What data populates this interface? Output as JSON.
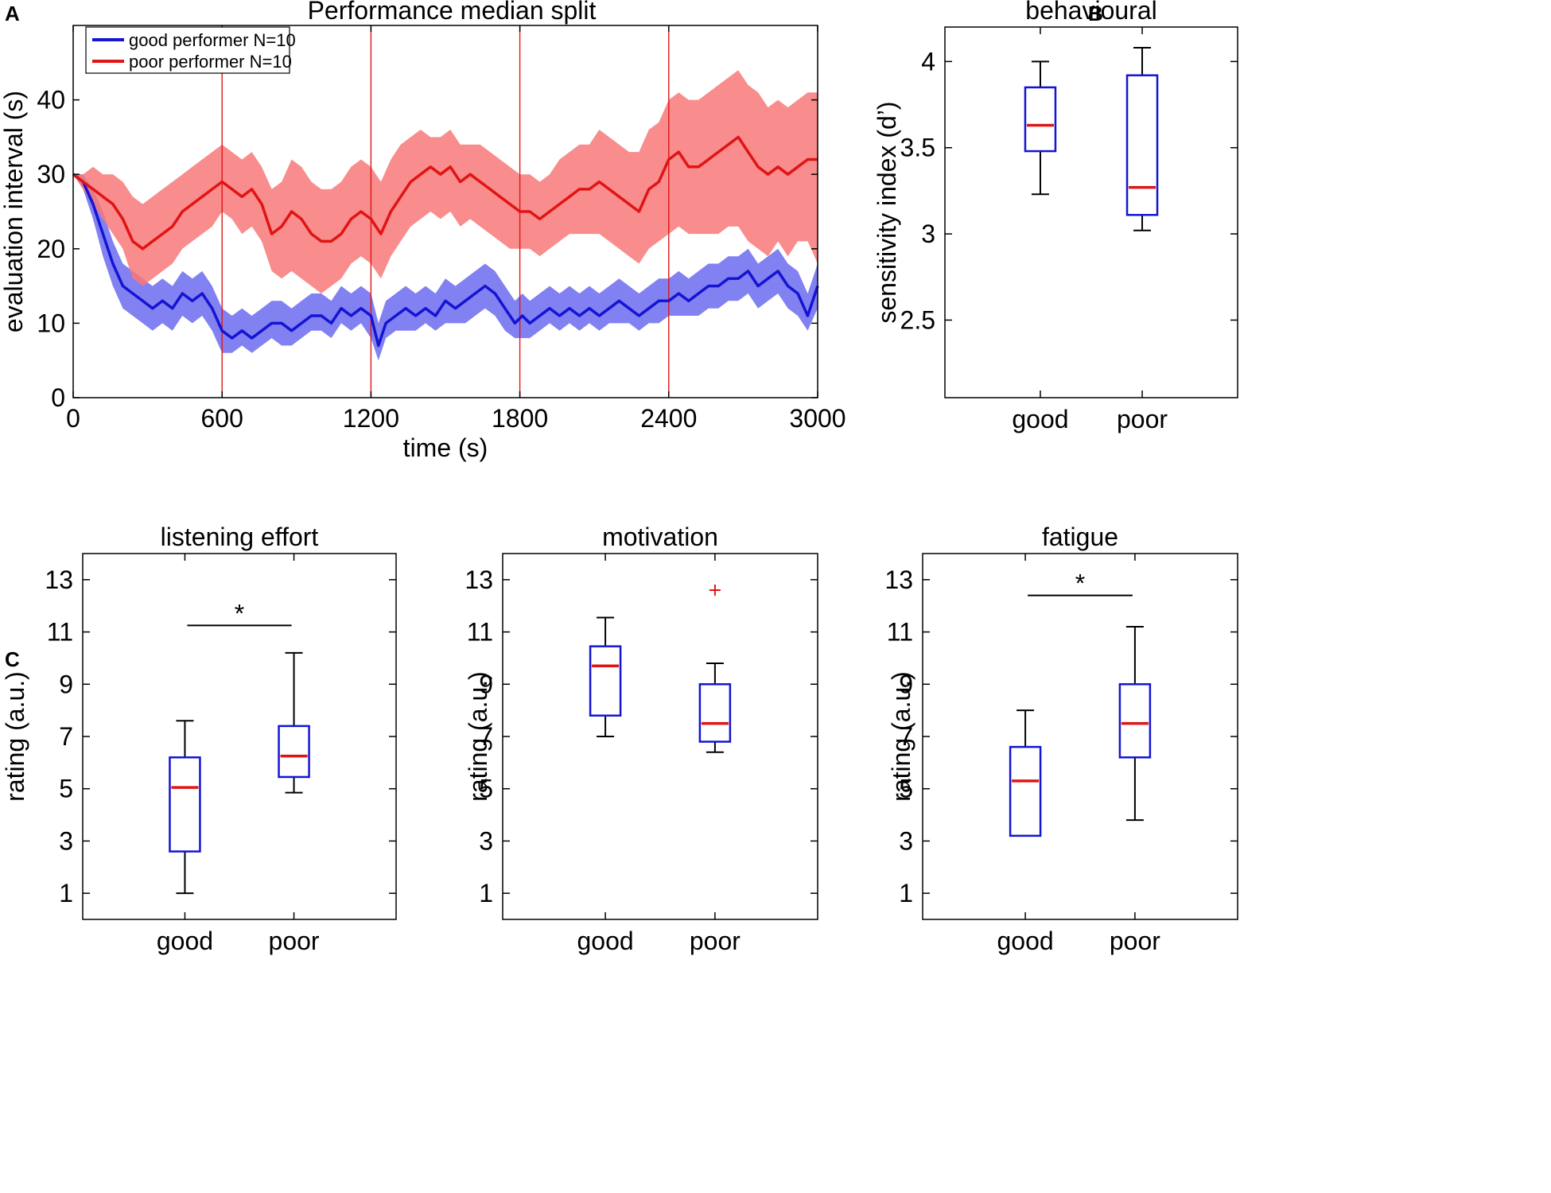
{
  "figure": {
    "panel_letters": [
      "A",
      "B",
      "C"
    ]
  },
  "chart_data": [
    {
      "id": "A",
      "type": "line",
      "title": "Performance median split",
      "xlabel": "time (s)",
      "ylabel": "evaluation interval (s)",
      "xlim": [
        0,
        3000
      ],
      "ylim": [
        0,
        50
      ],
      "xticks": [
        0,
        600,
        1200,
        1800,
        2400,
        3000
      ],
      "yticks": [
        0,
        10,
        20,
        30,
        40
      ],
      "vlines": [
        600,
        1200,
        1800,
        2400
      ],
      "legend": {
        "position": "top-left"
      },
      "series": [
        {
          "name": "good performer N=10",
          "color": "#1414d2",
          "band_color": "#6b6bf0",
          "x": [
            0,
            40,
            80,
            120,
            160,
            200,
            240,
            280,
            320,
            360,
            400,
            440,
            480,
            520,
            560,
            600,
            640,
            680,
            720,
            760,
            800,
            840,
            880,
            920,
            960,
            1000,
            1040,
            1080,
            1120,
            1160,
            1200,
            1230,
            1260,
            1300,
            1340,
            1380,
            1420,
            1460,
            1500,
            1540,
            1580,
            1620,
            1660,
            1700,
            1740,
            1780,
            1810,
            1840,
            1880,
            1920,
            1960,
            2000,
            2040,
            2080,
            2120,
            2160,
            2200,
            2240,
            2280,
            2320,
            2360,
            2400,
            2440,
            2480,
            2520,
            2560,
            2600,
            2640,
            2680,
            2720,
            2760,
            2800,
            2840,
            2880,
            2920,
            2960,
            3000
          ],
          "y": [
            30,
            29,
            26,
            22,
            18,
            15,
            14,
            13,
            12,
            13,
            12,
            14,
            13,
            14,
            12,
            9,
            8,
            9,
            8,
            9,
            10,
            10,
            9,
            10,
            11,
            11,
            10,
            12,
            11,
            12,
            11,
            7,
            10,
            11,
            12,
            11,
            12,
            11,
            13,
            12,
            13,
            14,
            15,
            14,
            12,
            10,
            11,
            10,
            11,
            12,
            11,
            12,
            11,
            12,
            11,
            12,
            13,
            12,
            11,
            12,
            13,
            13,
            14,
            13,
            14,
            15,
            15,
            16,
            16,
            17,
            15,
            16,
            17,
            15,
            14,
            11,
            15
          ],
          "lower": [
            30,
            28,
            24,
            19,
            15,
            12,
            11,
            10,
            9,
            10,
            9,
            11,
            10,
            11,
            9,
            6,
            6,
            7,
            6,
            7,
            8,
            7,
            7,
            8,
            9,
            9,
            8,
            10,
            9,
            10,
            8,
            5,
            8,
            9,
            9,
            9,
            10,
            9,
            10,
            10,
            10,
            11,
            12,
            11,
            9,
            8,
            8,
            8,
            9,
            10,
            9,
            10,
            9,
            10,
            9,
            10,
            10,
            10,
            9,
            10,
            10,
            11,
            11,
            11,
            11,
            12,
            12,
            13,
            13,
            14,
            12,
            13,
            14,
            12,
            11,
            9,
            12
          ],
          "upper": [
            30,
            30,
            28,
            25,
            21,
            18,
            17,
            16,
            15,
            16,
            15,
            17,
            16,
            17,
            15,
            12,
            11,
            12,
            11,
            12,
            13,
            13,
            12,
            13,
            14,
            14,
            13,
            15,
            14,
            15,
            14,
            10,
            13,
            14,
            15,
            14,
            15,
            14,
            16,
            15,
            16,
            17,
            18,
            17,
            15,
            13,
            14,
            13,
            14,
            15,
            14,
            15,
            14,
            15,
            14,
            15,
            16,
            15,
            14,
            15,
            16,
            16,
            17,
            16,
            17,
            18,
            18,
            19,
            19,
            20,
            18,
            19,
            20,
            18,
            17,
            14,
            18
          ]
        },
        {
          "name": "poor performer  N=10",
          "color": "#e01414",
          "band_color": "#f87878",
          "x": [
            0,
            40,
            80,
            120,
            160,
            200,
            240,
            280,
            320,
            360,
            400,
            440,
            480,
            520,
            560,
            600,
            640,
            680,
            720,
            760,
            800,
            840,
            880,
            920,
            960,
            1000,
            1040,
            1080,
            1120,
            1160,
            1200,
            1240,
            1280,
            1320,
            1360,
            1400,
            1440,
            1480,
            1520,
            1560,
            1600,
            1640,
            1680,
            1720,
            1760,
            1800,
            1840,
            1880,
            1920,
            1960,
            2000,
            2040,
            2080,
            2120,
            2160,
            2200,
            2240,
            2280,
            2320,
            2360,
            2400,
            2440,
            2480,
            2520,
            2560,
            2600,
            2640,
            2680,
            2720,
            2760,
            2800,
            2840,
            2880,
            2920,
            2960,
            3000
          ],
          "y": [
            30,
            29,
            28,
            27,
            26,
            24,
            21,
            20,
            21,
            22,
            23,
            25,
            26,
            27,
            28,
            29,
            28,
            27,
            28,
            26,
            22,
            23,
            25,
            24,
            22,
            21,
            21,
            22,
            24,
            25,
            24,
            22,
            25,
            27,
            29,
            30,
            31,
            30,
            31,
            29,
            30,
            29,
            28,
            27,
            26,
            25,
            25,
            24,
            25,
            26,
            27,
            28,
            28,
            29,
            28,
            27,
            26,
            25,
            28,
            29,
            32,
            33,
            31,
            31,
            32,
            33,
            34,
            35,
            33,
            31,
            30,
            31,
            30,
            31,
            32,
            32
          ],
          "lower": [
            30,
            28,
            26,
            24,
            22,
            20,
            16,
            15,
            16,
            17,
            18,
            20,
            21,
            22,
            23,
            25,
            24,
            22,
            23,
            21,
            17,
            16,
            17,
            16,
            15,
            14,
            15,
            16,
            18,
            19,
            18,
            16,
            19,
            21,
            23,
            24,
            25,
            24,
            25,
            23,
            24,
            23,
            22,
            21,
            20,
            20,
            20,
            19,
            20,
            21,
            22,
            22,
            22,
            22,
            21,
            20,
            19,
            18,
            20,
            21,
            22,
            23,
            22,
            22,
            22,
            22,
            23,
            23,
            21,
            20,
            19,
            21,
            19,
            21,
            21,
            18
          ],
          "upper": [
            30,
            30,
            31,
            30,
            30,
            29,
            27,
            26,
            27,
            28,
            29,
            30,
            31,
            32,
            33,
            34,
            33,
            32,
            33,
            31,
            28,
            29,
            32,
            31,
            29,
            28,
            28,
            29,
            31,
            32,
            31,
            29,
            32,
            34,
            35,
            36,
            35,
            35,
            36,
            34,
            34,
            34,
            33,
            32,
            31,
            30,
            30,
            29,
            30,
            32,
            33,
            34,
            34,
            36,
            35,
            34,
            33,
            33,
            36,
            37,
            40,
            41,
            40,
            40,
            41,
            42,
            43,
            44,
            42,
            41,
            39,
            40,
            39,
            40,
            41,
            41
          ]
        }
      ]
    },
    {
      "id": "B",
      "type": "boxplot",
      "title": "behavioural",
      "xlabel": "",
      "ylabel": "sensitivity index (d’)",
      "ylim": [
        2.05,
        4.2
      ],
      "yticks": [
        2.5,
        3,
        3.5,
        4
      ],
      "ytick_labels": [
        "2.5",
        "3",
        "3.5",
        "4"
      ],
      "categories": [
        "good",
        "poor"
      ],
      "boxes": [
        {
          "whisker_low": 3.23,
          "q1": 3.48,
          "median": 3.63,
          "q3": 3.85,
          "whisker_high": 4.0,
          "outliers": []
        },
        {
          "whisker_low": 3.02,
          "q1": 3.11,
          "median": 3.27,
          "q3": 3.92,
          "whisker_high": 4.08,
          "outliers": []
        }
      ]
    },
    {
      "id": "C1",
      "type": "boxplot",
      "title": "listening effort",
      "xlabel": "",
      "ylabel": "rating (a.u.)",
      "ylim": [
        0,
        14
      ],
      "yticks": [
        1,
        3,
        5,
        7,
        9,
        11,
        13
      ],
      "ytick_labels": [
        "1",
        "3",
        "5",
        "7",
        "9",
        "11",
        "13"
      ],
      "categories": [
        "good",
        "poor"
      ],
      "boxes": [
        {
          "whisker_low": 1.0,
          "q1": 2.6,
          "median": 5.05,
          "q3": 6.2,
          "whisker_high": 7.6,
          "outliers": []
        },
        {
          "whisker_low": 4.85,
          "q1": 5.45,
          "median": 6.25,
          "q3": 7.4,
          "whisker_high": 10.2,
          "outliers": []
        }
      ],
      "significance": {
        "marker": "*",
        "y": 11.25
      }
    },
    {
      "id": "C2",
      "type": "boxplot",
      "title": "motivation",
      "xlabel": "",
      "ylabel": "rating (a.u.)",
      "ylim": [
        0,
        14
      ],
      "yticks": [
        1,
        3,
        5,
        7,
        9,
        11,
        13
      ],
      "ytick_labels": [
        "1",
        "3",
        "5",
        "7",
        "9",
        "11",
        "13"
      ],
      "categories": [
        "good",
        "poor"
      ],
      "boxes": [
        {
          "whisker_low": 7.0,
          "q1": 7.8,
          "median": 9.7,
          "q3": 10.45,
          "whisker_high": 11.55,
          "outliers": []
        },
        {
          "whisker_low": 6.4,
          "q1": 6.8,
          "median": 7.5,
          "q3": 9.0,
          "whisker_high": 9.8,
          "outliers": [
            12.6
          ]
        }
      ],
      "outlier_marker": "+"
    },
    {
      "id": "C3",
      "type": "boxplot",
      "title": "fatigue",
      "xlabel": "",
      "ylabel": "rating (a.u.)",
      "ylim": [
        0,
        14
      ],
      "yticks": [
        1,
        3,
        5,
        7,
        9,
        11,
        13
      ],
      "ytick_labels": [
        "1",
        "3",
        "5",
        "7",
        "9",
        "11",
        "13"
      ],
      "categories": [
        "good",
        "poor"
      ],
      "boxes": [
        {
          "whisker_low": 3.2,
          "q1": 3.2,
          "median": 5.3,
          "q3": 6.6,
          "whisker_high": 8.0,
          "outliers": []
        },
        {
          "whisker_low": 3.8,
          "q1": 6.2,
          "median": 7.5,
          "q3": 9.0,
          "whisker_high": 11.2,
          "outliers": []
        }
      ],
      "significance": {
        "marker": "*",
        "y": 12.4
      }
    }
  ]
}
